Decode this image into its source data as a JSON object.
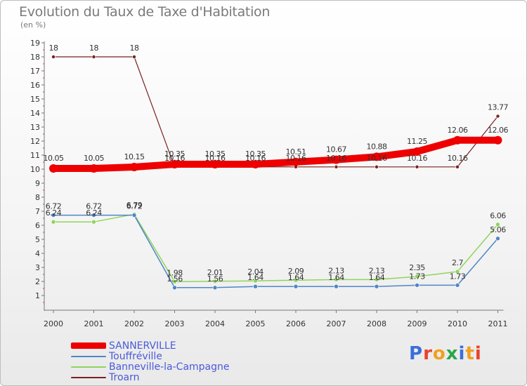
{
  "chart_data": {
    "type": "line",
    "title": "Evolution du Taux de Taxe d'Habitation",
    "subtitle": "(en %)",
    "categories": [
      "2000",
      "2001",
      "2002",
      "2003",
      "2004",
      "2005",
      "2006",
      "2007",
      "2008",
      "2009",
      "2010",
      "2011"
    ],
    "ylim": [
      0,
      19
    ],
    "yticks": [
      1,
      2,
      3,
      4,
      5,
      6,
      7,
      8,
      9,
      10,
      11,
      12,
      13,
      14,
      15,
      16,
      17,
      18,
      19
    ],
    "grid": false,
    "legend_position": "bottom-left",
    "series": [
      {
        "name": "SANNERVILLE",
        "color": "#ee0000",
        "values": [
          10.05,
          10.05,
          10.15,
          10.35,
          10.35,
          10.35,
          10.51,
          10.67,
          10.88,
          11.25,
          12.06,
          12.06
        ],
        "labels": [
          "10.05",
          "10.05",
          "10.15",
          "10.35",
          "10.35",
          "10.35",
          "10.51",
          "10.67",
          "10.88",
          "11.25",
          "12.06",
          "12.06"
        ]
      },
      {
        "name": "Touffréville",
        "color": "#4f86c6",
        "values": [
          6.72,
          6.72,
          6.72,
          1.56,
          1.56,
          1.64,
          1.64,
          1.64,
          1.64,
          1.73,
          1.73,
          5.06
        ],
        "labels": [
          "6.72",
          "6.72",
          "6.72",
          "1.56",
          "1.56",
          "1.64",
          "1.64",
          "1.64",
          "1.64",
          "1.73",
          "1.73",
          "5.06"
        ]
      },
      {
        "name": "Banneville-la-Campagne",
        "color": "#8fd45c",
        "values": [
          6.24,
          6.24,
          6.79,
          1.98,
          2.01,
          2.04,
          2.09,
          2.13,
          2.13,
          2.35,
          2.7,
          6.06
        ],
        "labels": [
          "6.24",
          "6.24",
          "6.79",
          "1.98",
          "2.01",
          "2.04",
          "2.09",
          "2.13",
          "2.13",
          "2.35",
          "2.7",
          "6.06"
        ]
      },
      {
        "name": "Troarn",
        "color": "#7a2020",
        "values": [
          18,
          18,
          18,
          10.16,
          10.16,
          10.16,
          10.16,
          10.16,
          10.16,
          10.16,
          10.16,
          13.77
        ],
        "labels": [
          "18",
          "18",
          "18",
          "10.16",
          "10.16",
          "10.16",
          "10.16",
          "10.16",
          "10.16",
          "10.16",
          "10.16",
          "13.77"
        ]
      }
    ]
  },
  "logo": {
    "text": "Proxiti",
    "colors": [
      "#3b6fd8",
      "#e8442b",
      "#f0a020",
      "#2aa64a",
      "#3b6fd8",
      "#f0a020",
      "#e8442b"
    ]
  }
}
